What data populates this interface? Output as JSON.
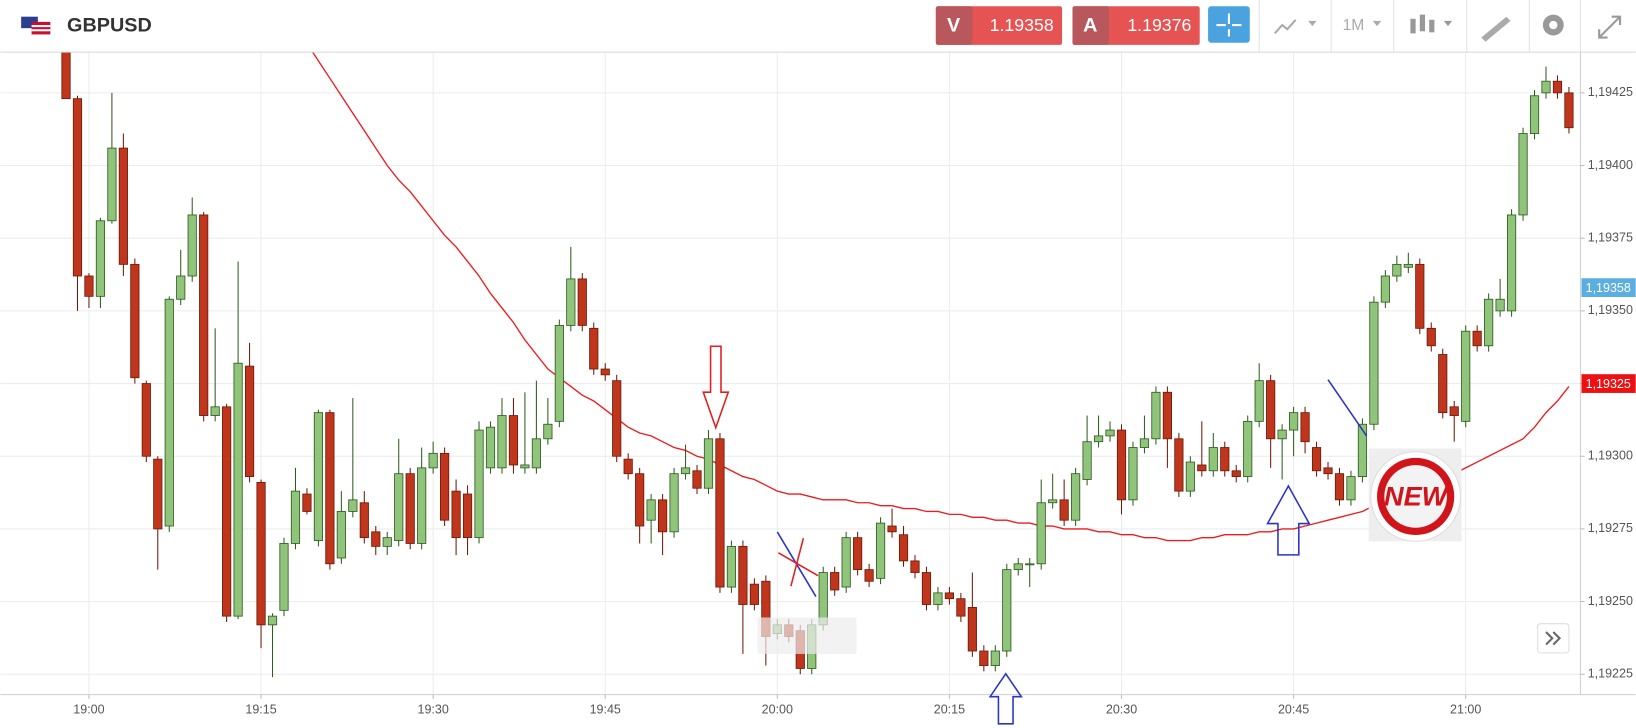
{
  "header": {
    "symbol": "GBPUSD",
    "sell_label": "V",
    "sell_price": 1.19358,
    "buy_label": "A",
    "buy_price": 1.19376,
    "timeframe": "1M"
  },
  "sticker": "NEW",
  "chart_data": {
    "type": "candlestick",
    "up_color": "#8fc47a",
    "up_edge": "#2f5d1f",
    "down_color": "#c0361c",
    "down_edge": "#6e1a0a",
    "grid": true,
    "ylim": [
      1.19218,
      1.19439
    ],
    "yticks": [
      {
        "value": 1.19225,
        "label": "1,19225"
      },
      {
        "value": 1.1925,
        "label": "1,19250"
      },
      {
        "value": 1.19275,
        "label": "1,19275"
      },
      {
        "value": 1.193,
        "label": "1,19300"
      },
      {
        "value": 1.19325,
        "label": "1,19325"
      },
      {
        "value": 1.1935,
        "label": "1,19350"
      },
      {
        "value": 1.19375,
        "label": "1,19375"
      },
      {
        "value": 1.194,
        "label": "1,19400"
      },
      {
        "value": 1.19425,
        "label": "1,19425"
      }
    ],
    "price_markers": [
      {
        "value": 1.19358,
        "label": "1,19358",
        "color": "#5aaee0"
      },
      {
        "value": 1.19325,
        "label": "1,19325",
        "color": "#ee1111"
      }
    ],
    "categories": [
      null,
      null,
      "19:00",
      null,
      null,
      null,
      null,
      null,
      null,
      null,
      null,
      null,
      null,
      null,
      null,
      null,
      null,
      "19:15",
      null,
      null,
      null,
      null,
      null,
      null,
      null,
      null,
      null,
      null,
      null,
      null,
      null,
      null,
      "19:30",
      null,
      null,
      null,
      null,
      null,
      null,
      null,
      null,
      null,
      null,
      null,
      null,
      null,
      null,
      "19:45",
      null,
      null,
      null,
      null,
      null,
      null,
      null,
      null,
      null,
      null,
      null,
      null,
      null,
      null,
      "20:00",
      null,
      null,
      null,
      null,
      null,
      null,
      null,
      null,
      null,
      null,
      null,
      null,
      null,
      null,
      "20:15",
      null,
      null,
      null,
      null,
      null,
      null,
      null,
      null,
      null,
      null,
      null,
      null,
      null,
      null,
      "20:30",
      null,
      null,
      null,
      null,
      null,
      null,
      null,
      null,
      null,
      null,
      null,
      null,
      null,
      null,
      "20:45",
      null,
      null,
      null,
      null,
      null,
      null,
      null,
      null,
      null,
      null,
      null,
      null,
      null,
      null,
      "21:00",
      null,
      null,
      null,
      null,
      null,
      null,
      null,
      null,
      null
    ],
    "ohlc": [
      [
        1.19439,
        1.19445,
        1.19423,
        1.19423
      ],
      [
        1.19423,
        1.19424,
        1.1935,
        1.19362
      ],
      [
        1.19362,
        1.19363,
        1.19351,
        1.19355
      ],
      [
        1.19355,
        1.19382,
        1.19351,
        1.19381
      ],
      [
        1.19381,
        1.19425,
        1.1938,
        1.19406
      ],
      [
        1.19406,
        1.19411,
        1.19362,
        1.19366
      ],
      [
        1.19366,
        1.19368,
        1.19325,
        1.19327
      ],
      [
        1.19325,
        1.19326,
        1.19298,
        1.193
      ],
      [
        1.19299,
        1.193,
        1.19261,
        1.19275
      ],
      [
        1.19276,
        1.19355,
        1.19274,
        1.19354
      ],
      [
        1.19354,
        1.19371,
        1.19352,
        1.19362
      ],
      [
        1.19362,
        1.19389,
        1.1936,
        1.19383
      ],
      [
        1.19383,
        1.19384,
        1.19312,
        1.19314
      ],
      [
        1.19314,
        1.19344,
        1.19312,
        1.19317
      ],
      [
        1.19317,
        1.19318,
        1.19243,
        1.19245
      ],
      [
        1.19245,
        1.19367,
        1.19244,
        1.19332
      ],
      [
        1.19331,
        1.19339,
        1.19291,
        1.19293
      ],
      [
        1.19291,
        1.19292,
        1.19234,
        1.19242
      ],
      [
        1.19242,
        1.19246,
        1.19224,
        1.19245
      ],
      [
        1.19247,
        1.19272,
        1.19245,
        1.1927
      ],
      [
        1.1927,
        1.19296,
        1.19268,
        1.19288
      ],
      [
        1.19287,
        1.19289,
        1.1928,
        1.19281
      ],
      [
        1.19271,
        1.19316,
        1.19269,
        1.19315
      ],
      [
        1.19315,
        1.19316,
        1.19261,
        1.19263
      ],
      [
        1.19265,
        1.19288,
        1.19263,
        1.19281
      ],
      [
        1.19281,
        1.1932,
        1.19279,
        1.19285
      ],
      [
        1.19284,
        1.19288,
        1.1927,
        1.19272
      ],
      [
        1.19274,
        1.19276,
        1.19266,
        1.19269
      ],
      [
        1.19269,
        1.19274,
        1.19266,
        1.19272
      ],
      [
        1.19271,
        1.19306,
        1.19269,
        1.19294
      ],
      [
        1.19294,
        1.19296,
        1.19268,
        1.1927
      ],
      [
        1.1927,
        1.19303,
        1.19268,
        1.19296
      ],
      [
        1.19296,
        1.19305,
        1.19294,
        1.19301
      ],
      [
        1.19301,
        1.19303,
        1.19276,
        1.19278
      ],
      [
        1.19288,
        1.19292,
        1.19266,
        1.19272
      ],
      [
        1.19287,
        1.1929,
        1.19266,
        1.19272
      ],
      [
        1.19272,
        1.19312,
        1.1927,
        1.19309
      ],
      [
        1.19296,
        1.19312,
        1.19294,
        1.1931
      ],
      [
        1.19296,
        1.1932,
        1.19294,
        1.19314
      ],
      [
        1.19314,
        1.1932,
        1.19294,
        1.19297
      ],
      [
        1.19296,
        1.19322,
        1.19294,
        1.19297
      ],
      [
        1.19296,
        1.19326,
        1.19294,
        1.19306
      ],
      [
        1.19306,
        1.1932,
        1.19304,
        1.19311
      ],
      [
        1.19312,
        1.19347,
        1.1931,
        1.19345
      ],
      [
        1.19345,
        1.19372,
        1.19343,
        1.19361
      ],
      [
        1.19361,
        1.19363,
        1.19343,
        1.19345
      ],
      [
        1.19344,
        1.19346,
        1.19328,
        1.1933
      ],
      [
        1.1933,
        1.19332,
        1.19326,
        1.19328
      ],
      [
        1.19326,
        1.19328,
        1.19298,
        1.193
      ],
      [
        1.19299,
        1.19301,
        1.19292,
        1.19294
      ],
      [
        1.19294,
        1.19296,
        1.1927,
        1.19276
      ],
      [
        1.19278,
        1.19287,
        1.1927,
        1.19285
      ],
      [
        1.19285,
        1.19287,
        1.19266,
        1.19274
      ],
      [
        1.19274,
        1.19296,
        1.19272,
        1.19294
      ],
      [
        1.19294,
        1.19304,
        1.19292,
        1.19296
      ],
      [
        1.19295,
        1.19297,
        1.19287,
        1.19289
      ],
      [
        1.19289,
        1.19309,
        1.19287,
        1.19306
      ],
      [
        1.19306,
        1.19308,
        1.19253,
        1.19255
      ],
      [
        1.19255,
        1.19271,
        1.19253,
        1.19269
      ],
      [
        1.19269,
        1.19271,
        1.19232,
        1.19249
      ],
      [
        1.19256,
        1.19258,
        1.19247,
        1.19249
      ],
      [
        1.19257,
        1.19259,
        1.19228,
        1.19238
      ],
      [
        1.19239,
        1.19244,
        1.19237,
        1.19242
      ],
      [
        1.19242,
        1.19244,
        1.19236,
        1.19238
      ],
      [
        1.1924,
        1.19242,
        1.19225,
        1.19227
      ],
      [
        1.19227,
        1.19244,
        1.19225,
        1.19242
      ],
      [
        1.19242,
        1.19262,
        1.1924,
        1.1926
      ],
      [
        1.1926,
        1.19262,
        1.19252,
        1.19254
      ],
      [
        1.19255,
        1.19274,
        1.19253,
        1.19272
      ],
      [
        1.19272,
        1.19274,
        1.19259,
        1.19261
      ],
      [
        1.19261,
        1.19263,
        1.19255,
        1.19257
      ],
      [
        1.19258,
        1.19279,
        1.19256,
        1.19277
      ],
      [
        1.19276,
        1.19282,
        1.19272,
        1.19274
      ],
      [
        1.19273,
        1.19276,
        1.19262,
        1.19264
      ],
      [
        1.19264,
        1.19266,
        1.19258,
        1.1926
      ],
      [
        1.1926,
        1.19262,
        1.19247,
        1.19249
      ],
      [
        1.19249,
        1.19255,
        1.19247,
        1.19253
      ],
      [
        1.19253,
        1.19255,
        1.19249,
        1.19251
      ],
      [
        1.19251,
        1.19253,
        1.19243,
        1.19245
      ],
      [
        1.19248,
        1.1926,
        1.19231,
        1.19233
      ],
      [
        1.19233,
        1.19235,
        1.19226,
        1.19228
      ],
      [
        1.19228,
        1.19235,
        1.19226,
        1.19233
      ],
      [
        1.19233,
        1.19263,
        1.19231,
        1.19261
      ],
      [
        1.19261,
        1.19265,
        1.19259,
        1.19263
      ],
      [
        1.19263,
        1.19265,
        1.19255,
        1.19263
      ],
      [
        1.19263,
        1.19292,
        1.19261,
        1.19284
      ],
      [
        1.19284,
        1.19294,
        1.19282,
        1.19285
      ],
      [
        1.19285,
        1.19292,
        1.19276,
        1.19278
      ],
      [
        1.19278,
        1.19296,
        1.19276,
        1.19294
      ],
      [
        1.19292,
        1.19314,
        1.1929,
        1.19305
      ],
      [
        1.19305,
        1.19314,
        1.19303,
        1.19307
      ],
      [
        1.19307,
        1.19312,
        1.19305,
        1.19309
      ],
      [
        1.19309,
        1.19311,
        1.1928,
        1.19285
      ],
      [
        1.19285,
        1.19305,
        1.19283,
        1.19303
      ],
      [
        1.19303,
        1.19314,
        1.19301,
        1.19306
      ],
      [
        1.19306,
        1.19324,
        1.19304,
        1.19322
      ],
      [
        1.19322,
        1.19324,
        1.19296,
        1.19306
      ],
      [
        1.19306,
        1.19308,
        1.19286,
        1.19288
      ],
      [
        1.19288,
        1.193,
        1.19286,
        1.19298
      ],
      [
        1.19297,
        1.19312,
        1.19293,
        1.19295
      ],
      [
        1.19295,
        1.19308,
        1.19293,
        1.19303
      ],
      [
        1.19303,
        1.19305,
        1.19293,
        1.19295
      ],
      [
        1.19295,
        1.19297,
        1.19291,
        1.19293
      ],
      [
        1.19293,
        1.19314,
        1.19291,
        1.19312
      ],
      [
        1.19312,
        1.19332,
        1.1931,
        1.19326
      ],
      [
        1.19326,
        1.19328,
        1.19296,
        1.19306
      ],
      [
        1.19306,
        1.19311,
        1.19292,
        1.19309
      ],
      [
        1.19309,
        1.19317,
        1.193,
        1.19315
      ],
      [
        1.19315,
        1.19317,
        1.19301,
        1.19305
      ],
      [
        1.19303,
        1.19305,
        1.19293,
        1.19295
      ],
      [
        1.19296,
        1.19298,
        1.19292,
        1.19294
      ],
      [
        1.19294,
        1.19296,
        1.19283,
        1.19285
      ],
      [
        1.19285,
        1.19295,
        1.19283,
        1.19293
      ],
      [
        1.19293,
        1.19313,
        1.19291,
        1.19311
      ],
      [
        1.19311,
        1.19355,
        1.19309,
        1.19353
      ],
      [
        1.19353,
        1.19364,
        1.19351,
        1.19362
      ],
      [
        1.19362,
        1.19369,
        1.1936,
        1.19366
      ],
      [
        1.19365,
        1.1937,
        1.19363,
        1.19366
      ],
      [
        1.19366,
        1.19368,
        1.19342,
        1.19344
      ],
      [
        1.19344,
        1.19346,
        1.19336,
        1.19338
      ],
      [
        1.19335,
        1.19337,
        1.19313,
        1.19315
      ],
      [
        1.19317,
        1.19319,
        1.19305,
        1.19314
      ],
      [
        1.19312,
        1.19345,
        1.1931,
        1.19343
      ],
      [
        1.19343,
        1.19345,
        1.19336,
        1.19338
      ],
      [
        1.19338,
        1.19356,
        1.19336,
        1.19354
      ],
      [
        1.1935,
        1.19361,
        1.19348,
        1.19354
      ],
      [
        1.1935,
        1.19385,
        1.19348,
        1.19383
      ],
      [
        1.19383,
        1.19413,
        1.19381,
        1.19411
      ],
      [
        1.19411,
        1.19426,
        1.19409,
        1.19424
      ],
      [
        1.19425,
        1.19434,
        1.19423,
        1.19429
      ],
      [
        1.19429,
        1.19431,
        1.19423,
        1.19425
      ],
      [
        1.19425,
        1.19427,
        1.19411,
        1.19413
      ]
    ],
    "overlay": {
      "color": "#ee1c1c",
      "values": [
        null,
        null,
        null,
        null,
        null,
        null,
        null,
        null,
        null,
        null,
        null,
        null,
        null,
        null,
        null,
        null,
        null,
        null,
        null,
        null,
        null,
        1.19442,
        1.19436,
        1.1943,
        1.19424,
        1.19418,
        1.19412,
        1.19406,
        1.194,
        1.19395,
        1.19391,
        1.19386,
        1.19381,
        1.19376,
        1.19372,
        1.19367,
        1.19362,
        1.19356,
        1.19351,
        1.19346,
        1.1934,
        1.19335,
        1.1933,
        1.19327,
        1.19324,
        1.19321,
        1.19319,
        1.19316,
        1.19313,
        1.1931,
        1.19308,
        1.19307,
        1.19305,
        1.19303,
        1.19302,
        1.193,
        1.19299,
        1.19297,
        1.19295,
        1.19293,
        1.19292,
        1.1929,
        1.19288,
        1.19287,
        1.19287,
        1.19286,
        1.19285,
        1.19285,
        1.19285,
        1.19284,
        1.19284,
        1.19283,
        1.19283,
        1.19282,
        1.19282,
        1.19281,
        1.19281,
        1.1928,
        1.1928,
        1.19279,
        1.19279,
        1.19278,
        1.19278,
        1.19277,
        1.19277,
        1.19276,
        1.19276,
        1.19275,
        1.19275,
        1.19275,
        1.19274,
        1.19274,
        1.19273,
        1.19273,
        1.19272,
        1.19272,
        1.19271,
        1.19271,
        1.19271,
        1.19272,
        1.19272,
        1.19273,
        1.19273,
        1.19273,
        1.19274,
        1.19274,
        1.19275,
        1.19275,
        1.19276,
        1.19277,
        1.19278,
        1.19279,
        1.1928,
        1.19281,
        1.19283,
        1.19284,
        1.19286,
        1.19288,
        1.19289,
        1.19291,
        1.19293,
        1.19294,
        1.19296,
        1.19298,
        1.193,
        1.19302,
        1.19304,
        1.19306,
        1.1931,
        1.19315,
        1.19319,
        1.19324
      ]
    }
  }
}
